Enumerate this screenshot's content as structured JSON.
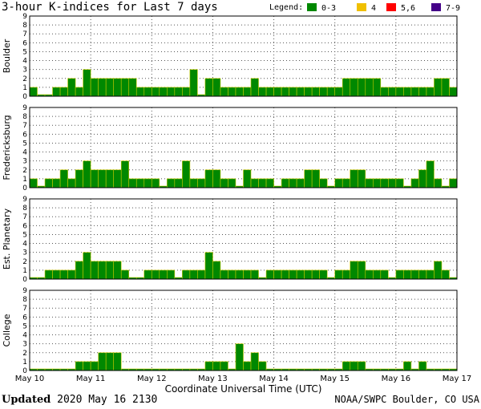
{
  "header": {
    "title": "3-hour K-indices for Last 7 days",
    "legend_label": "Legend:",
    "legend": [
      {
        "label": "0-3",
        "color": "#008800"
      },
      {
        "label": "4",
        "color": "#f0c000"
      },
      {
        "label": "5,6",
        "color": "#ff0000"
      },
      {
        "label": "7-9",
        "color": "#440088"
      }
    ]
  },
  "footer": {
    "updated_label": "Updated",
    "updated_value": "2020 May 16 2130",
    "source": "NOAA/SWPC Boulder, CO USA"
  },
  "chart_data": [
    {
      "type": "bar",
      "title": "Boulder",
      "ylim": [
        0,
        9
      ],
      "yticks": [
        "0",
        "1",
        "2",
        "3",
        "4",
        "5",
        "6",
        "7",
        "8",
        "9"
      ],
      "x_start": "May 10",
      "x_tick_labels": [
        "May 10",
        "May 11",
        "May 12",
        "May 13",
        "May 14",
        "May 15",
        "May 16",
        "May 17"
      ],
      "xlabel": "Coordinate Universal Time (UTC)",
      "values": [
        1,
        0,
        0,
        1,
        1,
        2,
        1,
        3,
        2,
        2,
        2,
        2,
        2,
        2,
        1,
        1,
        1,
        1,
        1,
        1,
        1,
        3,
        0,
        2,
        2,
        1,
        1,
        1,
        1,
        2,
        1,
        1,
        1,
        1,
        1,
        1,
        1,
        1,
        1,
        1,
        1,
        2,
        2,
        2,
        2,
        2,
        1,
        1,
        1,
        1,
        1,
        1,
        1,
        2,
        2,
        1,
        0
      ]
    },
    {
      "type": "bar",
      "title": "Fredericksburg",
      "ylim": [
        0,
        9
      ],
      "yticks": [
        "0",
        "1",
        "2",
        "3",
        "4",
        "5",
        "6",
        "7",
        "8",
        "9"
      ],
      "x_start": "May 10",
      "x_tick_labels": [
        "May 10",
        "May 11",
        "May 12",
        "May 13",
        "May 14",
        "May 15",
        "May 16",
        "May 17"
      ],
      "xlabel": "Coordinate Universal Time (UTC)",
      "values": [
        1,
        0,
        1,
        1,
        2,
        1,
        2,
        3,
        2,
        2,
        2,
        2,
        3,
        1,
        1,
        1,
        1,
        0,
        1,
        1,
        3,
        1,
        1,
        2,
        2,
        1,
        1,
        0,
        2,
        1,
        1,
        1,
        0,
        1,
        1,
        1,
        2,
        2,
        1,
        0,
        1,
        1,
        2,
        2,
        1,
        1,
        1,
        1,
        1,
        0,
        1,
        2,
        3,
        1,
        0,
        1,
        0
      ]
    },
    {
      "type": "bar",
      "title": "Est. Planetary",
      "ylim": [
        0,
        9
      ],
      "yticks": [
        "0",
        "1",
        "2",
        "3",
        "4",
        "5",
        "6",
        "7",
        "8",
        "9"
      ],
      "x_start": "May 10",
      "x_tick_labels": [
        "May 10",
        "May 11",
        "May 12",
        "May 13",
        "May 14",
        "May 15",
        "May 16",
        "May 17"
      ],
      "xlabel": "Coordinate Universal Time (UTC)",
      "values": [
        0,
        0,
        1,
        1,
        1,
        1,
        2,
        3,
        2,
        2,
        2,
        2,
        1,
        0,
        0,
        1,
        1,
        1,
        1,
        0,
        1,
        1,
        1,
        3,
        2,
        1,
        1,
        1,
        1,
        1,
        0,
        1,
        1,
        1,
        1,
        1,
        1,
        1,
        1,
        0,
        1,
        1,
        2,
        2,
        1,
        1,
        1,
        0,
        1,
        1,
        1,
        1,
        1,
        2,
        1,
        0,
        0
      ]
    },
    {
      "type": "bar",
      "title": "College",
      "ylim": [
        0,
        9
      ],
      "yticks": [
        "0",
        "1",
        "2",
        "3",
        "4",
        "5",
        "6",
        "7",
        "8",
        "9"
      ],
      "x_start": "May 10",
      "x_tick_labels": [
        "May 10",
        "May 11",
        "May 12",
        "May 13",
        "May 14",
        "May 15",
        "May 16",
        "May 17"
      ],
      "xlabel": "Coordinate Universal Time (UTC)",
      "values": [
        0,
        0,
        0,
        0,
        0,
        0,
        1,
        1,
        1,
        2,
        2,
        2,
        0,
        0,
        0,
        0,
        0,
        0,
        0,
        0,
        0,
        0,
        0,
        1,
        1,
        1,
        0,
        3,
        1,
        2,
        1,
        0,
        0,
        0,
        0,
        0,
        0,
        0,
        0,
        0,
        0,
        1,
        1,
        1,
        0,
        0,
        0,
        0,
        0,
        1,
        0,
        1,
        0,
        0,
        0,
        0,
        0
      ]
    }
  ]
}
